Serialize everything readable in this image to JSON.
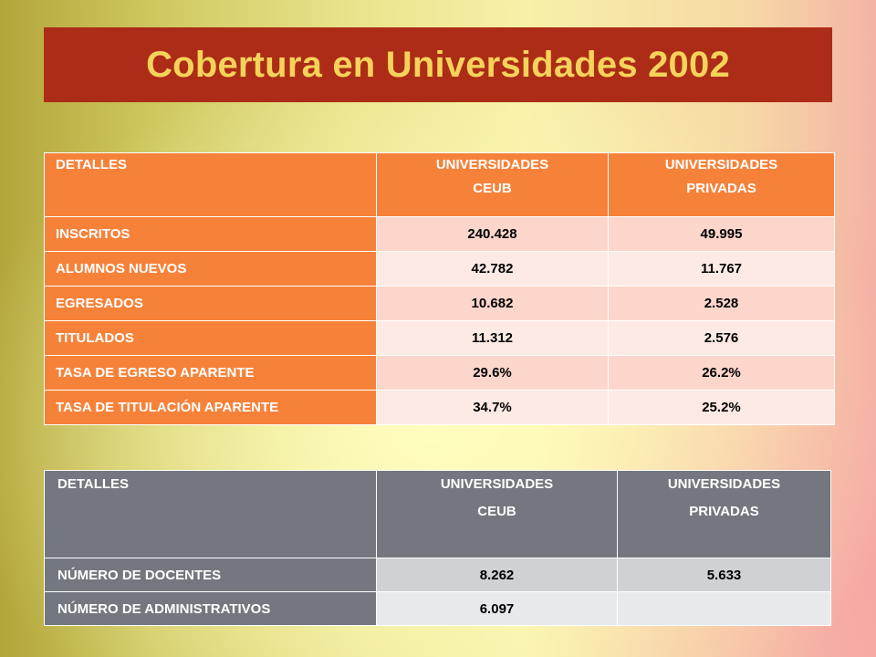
{
  "title": "Cobertura en Universidades 2002",
  "table1": {
    "headers": {
      "detalles": "DETALLES",
      "ceub_line1": "UNIVERSIDADES",
      "ceub_line2": "CEUB",
      "privadas_line1": "UNIVERSIDADES",
      "privadas_line2": "PRIVADAS"
    },
    "rows": [
      {
        "label": "INSCRITOS",
        "ceub": "240.428",
        "privadas": "49.995"
      },
      {
        "label": "ALUMNOS NUEVOS",
        "ceub": "42.782",
        "privadas": "11.767"
      },
      {
        "label": "EGRESADOS",
        "ceub": "10.682",
        "privadas": "2.528"
      },
      {
        "label": "TITULADOS",
        "ceub": "11.312",
        "privadas": "2.576"
      },
      {
        "label": "TASA DE EGRESO APARENTE",
        "ceub": "29.6%",
        "privadas": "26.2%"
      },
      {
        "label": "TASA DE TITULACIÓN APARENTE",
        "ceub": "34.7%",
        "privadas": "25.2%"
      }
    ]
  },
  "table2": {
    "headers": {
      "detalles": "DETALLES",
      "ceub_line1": "UNIVERSIDADES",
      "ceub_line2": "CEUB",
      "privadas_line1": "UNIVERSIDADES",
      "privadas_line2": "PRIVADAS"
    },
    "rows": [
      {
        "label": "NÚMERO DE DOCENTES",
        "ceub": "8.262",
        "privadas": "5.633"
      },
      {
        "label": "NÚMERO DE ADMINISTRATIVOS",
        "ceub": "6.097",
        "privadas": ""
      }
    ]
  },
  "colors": {
    "title_bg": "#ad2c17",
    "title_text": "#f5d35a",
    "orange_header": "#f6823a",
    "gray_header": "#757780"
  }
}
